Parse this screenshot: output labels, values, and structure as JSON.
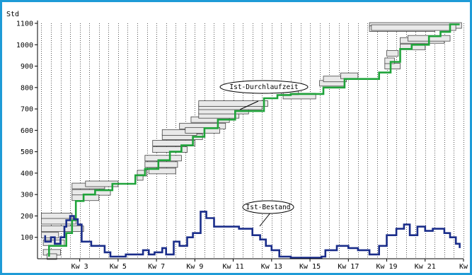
{
  "chart_data": {
    "type": "line",
    "y_unit_label": "Std",
    "ylim": [
      0,
      1100
    ],
    "y_ticks": [
      100,
      200,
      300,
      400,
      500,
      600,
      700,
      800,
      900,
      1000,
      1100
    ],
    "x_ticks": [
      {
        "label": "Kw 3",
        "x": 3
      },
      {
        "label": "Kw 5",
        "x": 5
      },
      {
        "label": "Kw 7",
        "x": 7
      },
      {
        "label": "Kw 9",
        "x": 9
      },
      {
        "label": "Kw 11",
        "x": 11
      },
      {
        "label": "Kw 13",
        "x": 13
      },
      {
        "label": "Kw 15",
        "x": 15
      },
      {
        "label": "Kw 17",
        "x": 17
      },
      {
        "label": "Kw 19",
        "x": 19
      },
      {
        "label": "Kw 21",
        "x": 21
      },
      {
        "label": "Kw",
        "x": 23
      }
    ],
    "xlim": [
      0.8,
      23.0
    ],
    "grid": "vertical dotted lines at half-week intervals",
    "annotations": [
      {
        "text": "Ist-Durchlaufzeit",
        "target": "bars"
      },
      {
        "text": "Ist-Bestand",
        "target": "blue series"
      }
    ],
    "series": [
      {
        "key": "cumulative",
        "color": "#1fa33a",
        "points": [
          [
            1.4,
            10
          ],
          [
            1.4,
            60
          ],
          [
            2.3,
            60
          ],
          [
            2.3,
            120
          ],
          [
            2.6,
            120
          ],
          [
            2.6,
            180
          ],
          [
            2.8,
            180
          ],
          [
            2.8,
            270
          ],
          [
            3.2,
            270
          ],
          [
            3.2,
            300
          ],
          [
            3.8,
            300
          ],
          [
            3.8,
            320
          ],
          [
            4.7,
            320
          ],
          [
            4.7,
            350
          ],
          [
            5.9,
            350
          ],
          [
            5.9,
            390
          ],
          [
            6.4,
            390
          ],
          [
            6.4,
            420
          ],
          [
            7.1,
            420
          ],
          [
            7.1,
            460
          ],
          [
            7.7,
            460
          ],
          [
            7.7,
            500
          ],
          [
            8.3,
            500
          ],
          [
            8.3,
            530
          ],
          [
            8.9,
            530
          ],
          [
            8.9,
            570
          ],
          [
            9.5,
            570
          ],
          [
            9.5,
            610
          ],
          [
            10.2,
            610
          ],
          [
            10.2,
            650
          ],
          [
            11.1,
            650
          ],
          [
            11.1,
            690
          ],
          [
            12.6,
            690
          ],
          [
            12.6,
            750
          ],
          [
            13.3,
            750
          ],
          [
            13.3,
            765
          ],
          [
            14.0,
            765
          ],
          [
            14.0,
            770
          ],
          [
            15.7,
            770
          ],
          [
            15.7,
            800
          ],
          [
            16.8,
            800
          ],
          [
            16.8,
            840
          ],
          [
            18.6,
            840
          ],
          [
            18.6,
            870
          ],
          [
            19.2,
            870
          ],
          [
            19.2,
            920
          ],
          [
            19.7,
            920
          ],
          [
            19.7,
            980
          ],
          [
            20.3,
            980
          ],
          [
            20.3,
            1000
          ],
          [
            21.2,
            1000
          ],
          [
            21.2,
            1040
          ],
          [
            21.8,
            1040
          ],
          [
            21.8,
            1060
          ],
          [
            22.3,
            1060
          ],
          [
            22.3,
            1095
          ],
          [
            22.8,
            1095
          ]
        ]
      },
      {
        "key": "inventory",
        "color": "#1a2d8a",
        "points": [
          [
            1.2,
            110
          ],
          [
            1.2,
            80
          ],
          [
            1.5,
            80
          ],
          [
            1.5,
            100
          ],
          [
            1.7,
            100
          ],
          [
            1.7,
            70
          ],
          [
            2.0,
            70
          ],
          [
            2.0,
            100
          ],
          [
            2.2,
            100
          ],
          [
            2.2,
            150
          ],
          [
            2.3,
            150
          ],
          [
            2.3,
            180
          ],
          [
            2.5,
            180
          ],
          [
            2.5,
            200
          ],
          [
            2.7,
            200
          ],
          [
            2.7,
            185
          ],
          [
            2.9,
            185
          ],
          [
            2.9,
            160
          ],
          [
            3.1,
            160
          ],
          [
            3.1,
            80
          ],
          [
            3.6,
            80
          ],
          [
            3.6,
            60
          ],
          [
            4.3,
            60
          ],
          [
            4.3,
            30
          ],
          [
            4.6,
            30
          ],
          [
            4.6,
            10
          ],
          [
            5.4,
            10
          ],
          [
            5.4,
            20
          ],
          [
            6.3,
            20
          ],
          [
            6.3,
            40
          ],
          [
            6.6,
            40
          ],
          [
            6.6,
            20
          ],
          [
            6.9,
            20
          ],
          [
            6.9,
            30
          ],
          [
            7.3,
            30
          ],
          [
            7.3,
            50
          ],
          [
            7.5,
            50
          ],
          [
            7.5,
            20
          ],
          [
            7.9,
            20
          ],
          [
            7.9,
            80
          ],
          [
            8.2,
            80
          ],
          [
            8.2,
            60
          ],
          [
            8.6,
            60
          ],
          [
            8.6,
            100
          ],
          [
            8.9,
            100
          ],
          [
            8.9,
            120
          ],
          [
            9.3,
            120
          ],
          [
            9.3,
            220
          ],
          [
            9.6,
            220
          ],
          [
            9.6,
            190
          ],
          [
            10.0,
            190
          ],
          [
            10.0,
            150
          ],
          [
            11.3,
            150
          ],
          [
            11.3,
            140
          ],
          [
            12.0,
            140
          ],
          [
            12.0,
            110
          ],
          [
            12.4,
            110
          ],
          [
            12.4,
            90
          ],
          [
            12.7,
            90
          ],
          [
            12.7,
            60
          ],
          [
            13.0,
            60
          ],
          [
            13.0,
            40
          ],
          [
            13.4,
            40
          ],
          [
            13.4,
            10
          ],
          [
            14.0,
            10
          ],
          [
            14.0,
            5
          ],
          [
            15.6,
            5
          ],
          [
            15.6,
            10
          ],
          [
            15.8,
            10
          ],
          [
            15.8,
            40
          ],
          [
            16.4,
            40
          ],
          [
            16.4,
            60
          ],
          [
            17.0,
            60
          ],
          [
            17.0,
            50
          ],
          [
            17.5,
            50
          ],
          [
            17.5,
            40
          ],
          [
            18.1,
            40
          ],
          [
            18.1,
            20
          ],
          [
            18.6,
            20
          ],
          [
            18.6,
            60
          ],
          [
            19.0,
            60
          ],
          [
            19.0,
            110
          ],
          [
            19.5,
            110
          ],
          [
            19.5,
            140
          ],
          [
            19.9,
            140
          ],
          [
            19.9,
            160
          ],
          [
            20.2,
            160
          ],
          [
            20.2,
            110
          ],
          [
            20.6,
            110
          ],
          [
            20.6,
            150
          ],
          [
            21.0,
            150
          ],
          [
            21.0,
            130
          ],
          [
            21.4,
            130
          ],
          [
            21.4,
            140
          ],
          [
            22.0,
            140
          ],
          [
            22.0,
            120
          ],
          [
            22.3,
            120
          ],
          [
            22.3,
            100
          ],
          [
            22.6,
            100
          ],
          [
            22.6,
            70
          ],
          [
            22.8,
            70
          ],
          [
            22.8,
            50
          ]
        ]
      }
    ],
    "bars": [
      [
        1.0,
        2.6,
        200
      ],
      [
        1.0,
        2.8,
        175
      ],
      [
        1.0,
        3.2,
        140
      ],
      [
        1.0,
        1.9,
        110
      ],
      [
        1.1,
        2.2,
        75
      ],
      [
        1.1,
        2.0,
        30
      ],
      [
        1.3,
        1.8,
        10
      ],
      [
        2.6,
        4.3,
        340
      ],
      [
        2.6,
        4.6,
        310
      ],
      [
        2.6,
        4.0,
        285
      ],
      [
        3.3,
        5.0,
        350
      ],
      [
        6.0,
        6.5,
        400
      ],
      [
        6.0,
        6.3,
        380
      ],
      [
        6.4,
        8.3,
        470
      ],
      [
        6.4,
        8.1,
        440
      ],
      [
        6.6,
        8.0,
        410
      ],
      [
        6.8,
        9.0,
        540
      ],
      [
        6.8,
        8.6,
        510
      ],
      [
        7.3,
        9.4,
        570
      ],
      [
        7.3,
        9.1,
        590
      ],
      [
        8.2,
        10.6,
        620
      ],
      [
        8.5,
        10.3,
        600
      ],
      [
        8.8,
        10.8,
        650
      ],
      [
        9.2,
        11.3,
        670
      ],
      [
        9.2,
        11.8,
        690
      ],
      [
        9.2,
        12.5,
        710
      ],
      [
        9.2,
        12.8,
        725
      ],
      [
        13.6,
        15.3,
        760
      ],
      [
        13.6,
        14.4,
        780
      ],
      [
        15.5,
        16.8,
        820
      ],
      [
        15.7,
        16.9,
        840
      ],
      [
        16.6,
        17.5,
        855
      ],
      [
        18.9,
        19.7,
        900
      ],
      [
        18.9,
        19.4,
        925
      ],
      [
        19.0,
        19.6,
        960
      ],
      [
        19.7,
        21.0,
        990
      ],
      [
        19.7,
        22.0,
        1020
      ],
      [
        20.1,
        22.3,
        1030
      ],
      [
        18.1,
        22.9,
        1090
      ],
      [
        18.1,
        21.5,
        1075
      ],
      [
        18.2,
        22.6,
        1080
      ]
    ]
  }
}
